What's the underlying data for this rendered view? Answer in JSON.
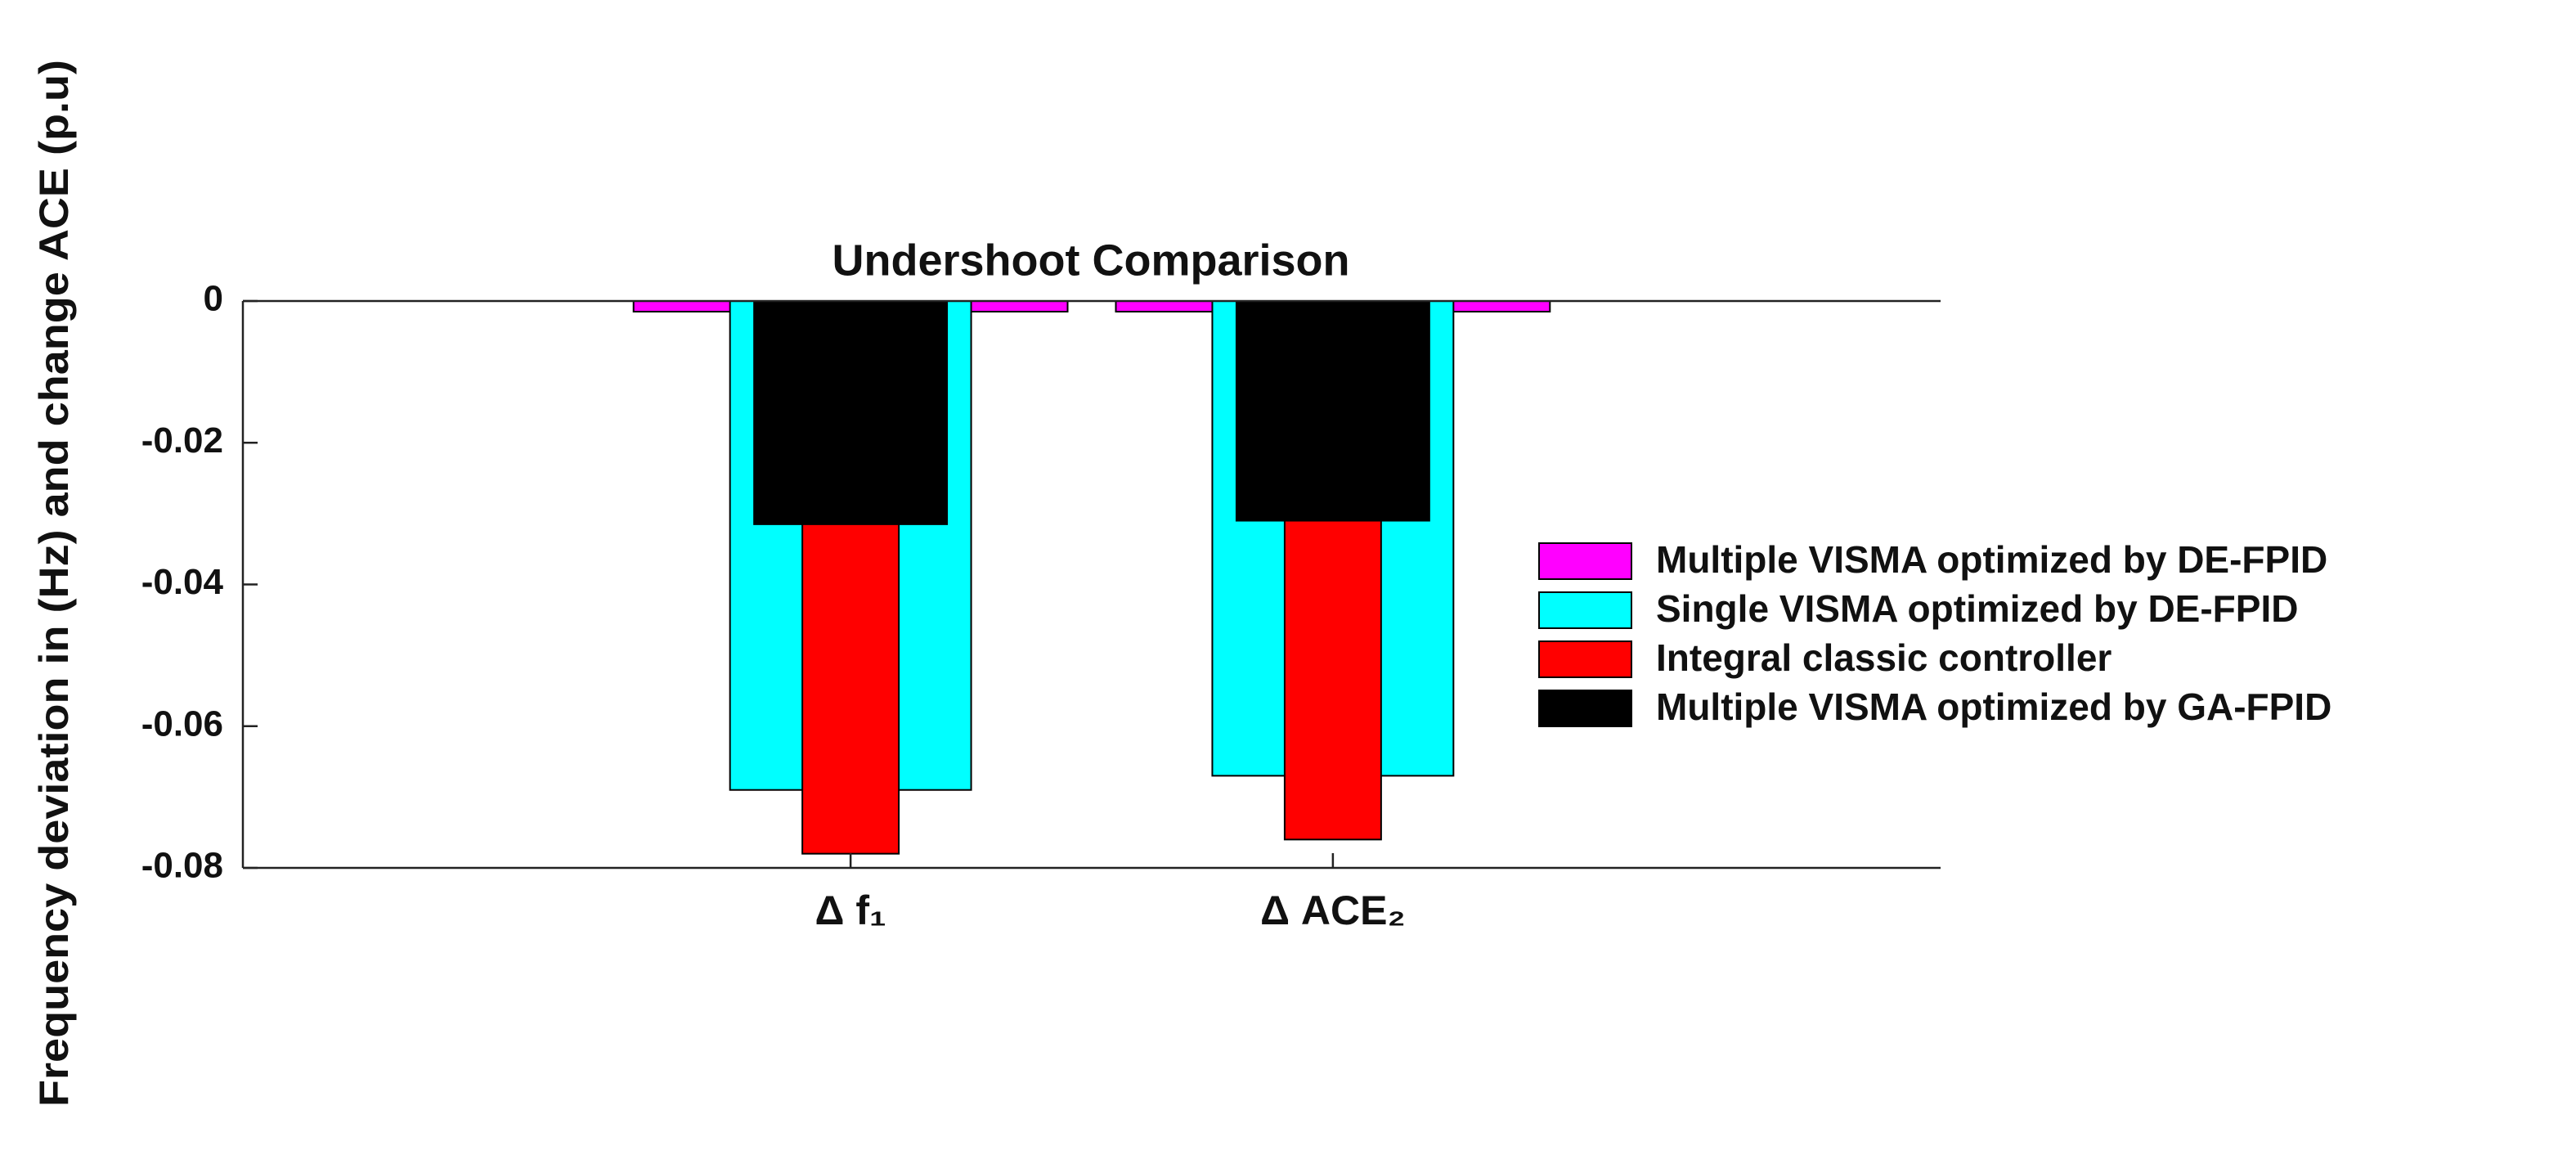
{
  "chart_data": {
    "type": "bar",
    "title": "Undershoot Comparison",
    "y_label": "Frequency deviation in (Hz) and change ACE (p.u)",
    "categories": [
      "Δ f₁",
      "Δ ACE₂"
    ],
    "series": [
      {
        "name": "Multiple VISMA optimized by DE-FPID",
        "color": "#ff00ff",
        "values": [
          -0.0015,
          -0.0015
        ]
      },
      {
        "name": "Single VISMA optimized by DE-FPID",
        "color": "#00ffff",
        "values": [
          -0.069,
          -0.067
        ]
      },
      {
        "name": "Integral classic controller",
        "color": "#ff0000",
        "values": [
          -0.078,
          -0.076
        ]
      },
      {
        "name": "Multiple VISMA optimized by GA-FPID",
        "color": "#000000",
        "values": [
          -0.0315,
          -0.031
        ]
      }
    ],
    "ylim": [
      -0.08,
      0
    ],
    "yticks": [
      -0.08,
      -0.06,
      -0.04,
      -0.02,
      0
    ],
    "legend": "right",
    "grid": false
  }
}
